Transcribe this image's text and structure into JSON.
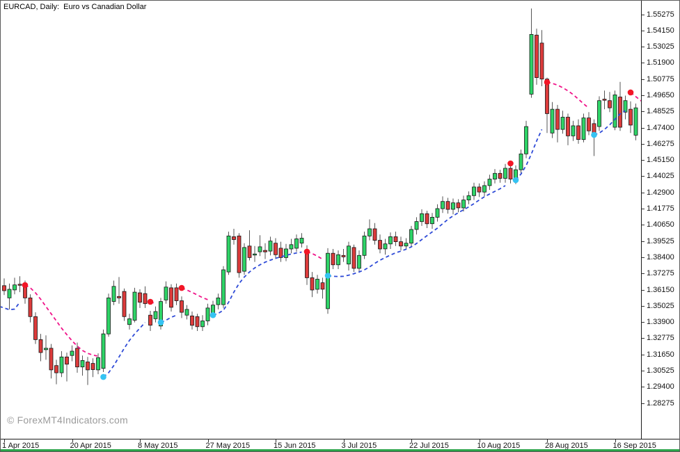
{
  "window": {
    "title": "EURCAD, Daily:  Euro vs Canadian Dollar"
  },
  "watermark": "© ForexMT4Indicators.com",
  "colors": {
    "background": "#ffffff",
    "candle_up": "#2ed467",
    "candle_down": "#dc3b3b",
    "candle_border": "#151515",
    "wick": "#555555",
    "trail_up": "#2f4bd7",
    "trail_down": "#f01389",
    "dot_up": "#35c3f2",
    "dot_down": "#f21626",
    "axis_text": "#111111",
    "bottom_strip": "#2ca44a"
  },
  "chart_data": {
    "type": "candlestick",
    "symbol": "EURCAD",
    "timeframe": "Daily",
    "description": "Euro vs Canadian Dollar",
    "grid": false,
    "legend": false,
    "ylim": [
      1.25814,
      1.56241
    ],
    "price_axis_ticks": [
      "1.55275",
      "1.54150",
      "1.53025",
      "1.51900",
      "1.50775",
      "1.49650",
      "1.48525",
      "1.47400",
      "1.46275",
      "1.45150",
      "1.44025",
      "1.42900",
      "1.41775",
      "1.40650",
      "1.39525",
      "1.38400",
      "1.37275",
      "1.36150",
      "1.35025",
      "1.33900",
      "1.32775",
      "1.31650",
      "1.30525",
      "1.29400",
      "1.28275"
    ],
    "date_axis_ticks": [
      {
        "label": "1 Apr 2015",
        "bar": 0
      },
      {
        "label": "20 Apr 2015",
        "bar": 13
      },
      {
        "label": "8 May 2015",
        "bar": 26
      },
      {
        "label": "27 May 2015",
        "bar": 39
      },
      {
        "label": "15 Jun 2015",
        "bar": 52
      },
      {
        "label": "3 Jul 2015",
        "bar": 65
      },
      {
        "label": "22 Jul 2015",
        "bar": 78
      },
      {
        "label": "10 Aug 2015",
        "bar": 91
      },
      {
        "label": "28 Aug 2015",
        "bar": 104
      },
      {
        "label": "16 Sep 2015",
        "bar": 117
      }
    ],
    "candles": [
      [
        1.3645,
        1.3695,
        1.358,
        1.361
      ],
      [
        1.356,
        1.366,
        1.348,
        1.362
      ],
      [
        1.3615,
        1.37,
        1.3585,
        1.365
      ],
      [
        1.3655,
        1.371,
        1.36,
        1.365
      ],
      [
        1.364,
        1.368,
        1.352,
        1.356
      ],
      [
        1.356,
        1.3585,
        1.339,
        1.343
      ],
      [
        1.343,
        1.346,
        1.324,
        1.327
      ],
      [
        1.327,
        1.331,
        1.312,
        1.318
      ],
      [
        1.32,
        1.33,
        1.313,
        1.321
      ],
      [
        1.321,
        1.324,
        1.3,
        1.306
      ],
      [
        1.309,
        1.313,
        1.296,
        1.304
      ],
      [
        1.304,
        1.319,
        1.301,
        1.315
      ],
      [
        1.315,
        1.318,
        1.298,
        1.31
      ],
      [
        1.316,
        1.323,
        1.312,
        1.319
      ],
      [
        1.321,
        1.325,
        1.304,
        1.308
      ],
      [
        1.308,
        1.316,
        1.302,
        1.3125
      ],
      [
        1.3115,
        1.315,
        1.2955,
        1.306
      ],
      [
        1.3105,
        1.314,
        1.301,
        1.3062
      ],
      [
        1.306,
        1.3175,
        1.303,
        1.3145
      ],
      [
        1.307,
        1.334,
        1.3045,
        1.331
      ],
      [
        1.331,
        1.359,
        1.329,
        1.356
      ],
      [
        1.3535,
        1.368,
        1.351,
        1.364
      ],
      [
        1.357,
        1.3705,
        1.352,
        1.356
      ],
      [
        1.3605,
        1.3625,
        1.34,
        1.343
      ],
      [
        1.3375,
        1.345,
        1.334,
        1.3415
      ],
      [
        1.3405,
        1.363,
        1.339,
        1.36
      ],
      [
        1.3595,
        1.362,
        1.349,
        1.353
      ],
      [
        1.359,
        1.364,
        1.349,
        1.352
      ],
      [
        1.344,
        1.347,
        1.333,
        1.337
      ],
      [
        1.3415,
        1.35,
        1.339,
        1.3465
      ],
      [
        1.3365,
        1.356,
        1.334,
        1.3535
      ],
      [
        1.3545,
        1.3675,
        1.352,
        1.3635
      ],
      [
        1.363,
        1.3655,
        1.3465,
        1.3495
      ],
      [
        1.363,
        1.366,
        1.351,
        1.354
      ],
      [
        1.354,
        1.357,
        1.342,
        1.346
      ],
      [
        1.344,
        1.351,
        1.341,
        1.348
      ],
      [
        1.3435,
        1.3465,
        1.334,
        1.337
      ],
      [
        1.343,
        1.345,
        1.333,
        1.336
      ],
      [
        1.336,
        1.344,
        1.333,
        1.34
      ],
      [
        1.34,
        1.352,
        1.337,
        1.349
      ],
      [
        1.3455,
        1.354,
        1.3435,
        1.351
      ],
      [
        1.3513,
        1.359,
        1.348,
        1.356
      ],
      [
        1.3513,
        1.378,
        1.349,
        1.3755
      ],
      [
        1.374,
        1.402,
        1.372,
        1.399
      ],
      [
        1.3985,
        1.404,
        1.393,
        1.3965
      ],
      [
        1.399,
        1.401,
        1.37,
        1.3735
      ],
      [
        1.3745,
        1.394,
        1.372,
        1.391
      ],
      [
        1.392,
        1.403,
        1.382,
        1.384
      ],
      [
        1.386,
        1.392,
        1.381,
        1.3865
      ],
      [
        1.388,
        1.3995,
        1.385,
        1.3915
      ],
      [
        1.389,
        1.394,
        1.383,
        1.388
      ],
      [
        1.3885,
        1.3985,
        1.3855,
        1.3955
      ],
      [
        1.394,
        1.3975,
        1.383,
        1.386
      ],
      [
        1.3905,
        1.395,
        1.381,
        1.384
      ],
      [
        1.384,
        1.3935,
        1.3815,
        1.39
      ],
      [
        1.39,
        1.397,
        1.387,
        1.393
      ],
      [
        1.3905,
        1.4,
        1.388,
        1.397
      ],
      [
        1.394,
        1.401,
        1.391,
        1.3975
      ],
      [
        1.3875,
        1.3925,
        1.365,
        1.37
      ],
      [
        1.37,
        1.374,
        1.3565,
        1.3615
      ],
      [
        1.362,
        1.372,
        1.359,
        1.369
      ],
      [
        1.3665,
        1.37,
        1.3555,
        1.362
      ],
      [
        1.3485,
        1.3905,
        1.345,
        1.387
      ],
      [
        1.387,
        1.39,
        1.376,
        1.379
      ],
      [
        1.379,
        1.389,
        1.376,
        1.386
      ],
      [
        1.3855,
        1.39,
        1.381,
        1.3845
      ],
      [
        1.3795,
        1.395,
        1.375,
        1.392
      ],
      [
        1.391,
        1.393,
        1.374,
        1.3765
      ],
      [
        1.3765,
        1.389,
        1.374,
        1.3855
      ],
      [
        1.3855,
        1.402,
        1.383,
        1.399
      ],
      [
        1.399,
        1.4105,
        1.396,
        1.404
      ],
      [
        1.404,
        1.408,
        1.393,
        1.396
      ],
      [
        1.396,
        1.4,
        1.387,
        1.39
      ],
      [
        1.39,
        1.397,
        1.386,
        1.3935
      ],
      [
        1.3935,
        1.4015,
        1.39,
        1.3985
      ],
      [
        1.3985,
        1.402,
        1.392,
        1.395
      ],
      [
        1.395,
        1.3985,
        1.389,
        1.392
      ],
      [
        1.392,
        1.3975,
        1.3895,
        1.394
      ],
      [
        1.394,
        1.406,
        1.3915,
        1.4035
      ],
      [
        1.4035,
        1.412,
        1.4,
        1.409
      ],
      [
        1.409,
        1.4175,
        1.406,
        1.4145
      ],
      [
        1.4145,
        1.4165,
        1.4045,
        1.4075
      ],
      [
        1.4075,
        1.415,
        1.404,
        1.412
      ],
      [
        1.412,
        1.421,
        1.409,
        1.418
      ],
      [
        1.418,
        1.4265,
        1.415,
        1.423
      ],
      [
        1.423,
        1.4255,
        1.4145,
        1.4175
      ],
      [
        1.4175,
        1.425,
        1.414,
        1.422
      ],
      [
        1.422,
        1.4245,
        1.4155,
        1.4185
      ],
      [
        1.4185,
        1.427,
        1.416,
        1.424
      ],
      [
        1.424,
        1.43,
        1.421,
        1.427
      ],
      [
        1.427,
        1.436,
        1.424,
        1.433
      ],
      [
        1.433,
        1.4355,
        1.426,
        1.4295
      ],
      [
        1.4295,
        1.437,
        1.4265,
        1.434
      ],
      [
        1.434,
        1.4415,
        1.431,
        1.4385
      ],
      [
        1.4385,
        1.4455,
        1.4355,
        1.4425
      ],
      [
        1.4425,
        1.445,
        1.436,
        1.439
      ],
      [
        1.439,
        1.449,
        1.436,
        1.446
      ],
      [
        1.446,
        1.448,
        1.4355,
        1.4385
      ],
      [
        1.4385,
        1.448,
        1.435,
        1.445
      ],
      [
        1.445,
        1.459,
        1.442,
        1.456
      ],
      [
        1.456,
        1.479,
        1.453,
        1.475
      ],
      [
        1.4975,
        1.557,
        1.495,
        1.539
      ],
      [
        1.5385,
        1.543,
        1.504,
        1.509
      ],
      [
        1.533,
        1.542,
        1.503,
        1.508
      ],
      [
        1.508,
        1.509,
        1.4705,
        1.484
      ],
      [
        1.4705,
        1.492,
        1.467,
        1.487
      ],
      [
        1.487,
        1.49,
        1.464,
        1.473
      ],
      [
        1.473,
        1.486,
        1.47,
        1.4815
      ],
      [
        1.4815,
        1.484,
        1.462,
        1.4685
      ],
      [
        1.4685,
        1.479,
        1.465,
        1.4755
      ],
      [
        1.4755,
        1.48,
        1.463,
        1.466
      ],
      [
        1.466,
        1.484,
        1.464,
        1.481
      ],
      [
        1.481,
        1.485,
        1.469,
        1.472
      ],
      [
        1.477,
        1.48,
        1.4545,
        1.47
      ],
      [
        1.475,
        1.496,
        1.472,
        1.493
      ],
      [
        1.494,
        1.5,
        1.487,
        1.4935
      ],
      [
        1.493,
        1.499,
        1.485,
        1.488
      ],
      [
        1.4745,
        1.5,
        1.4725,
        1.497
      ],
      [
        1.4955,
        1.506,
        1.472,
        1.4745
      ],
      [
        1.485,
        1.4965,
        1.48,
        1.493
      ],
      [
        1.487,
        1.4925,
        1.4705,
        1.476
      ],
      [
        1.469,
        1.491,
        1.4655,
        1.488
      ]
    ],
    "indicator": {
      "name": "trailing-stop-dashed-line",
      "style": "dashed",
      "values": [
        1.349,
        1.3478,
        1.3482,
        1.353,
        1.3649,
        1.363,
        1.3595,
        1.355,
        1.35,
        1.345,
        1.34,
        1.335,
        1.3305,
        1.3262,
        1.3225,
        1.3195,
        1.3175,
        1.3163,
        1.3155,
        1.3011,
        1.304,
        1.309,
        1.315,
        1.321,
        1.3265,
        1.331,
        1.335,
        1.339,
        1.3533,
        1.352,
        1.339,
        1.3405,
        1.3425,
        1.344,
        1.3629,
        1.3615,
        1.3598,
        1.358,
        1.3562,
        1.3548,
        1.344,
        1.3452,
        1.3475,
        1.353,
        1.36,
        1.366,
        1.3705,
        1.374,
        1.3768,
        1.379,
        1.3808,
        1.3822,
        1.3835,
        1.3845,
        1.3855,
        1.3865,
        1.3872,
        1.3878,
        1.3881,
        1.3868,
        1.385,
        1.3828,
        1.3714,
        1.371,
        1.3708,
        1.371,
        1.3718,
        1.3728,
        1.374,
        1.3755,
        1.3775,
        1.38,
        1.3822,
        1.384,
        1.3858,
        1.3873,
        1.3885,
        1.3898,
        1.3915,
        1.3938,
        1.3965,
        1.3992,
        1.4018,
        1.4045,
        1.4075,
        1.4105,
        1.413,
        1.4152,
        1.4172,
        1.4192,
        1.4215,
        1.424,
        1.4262,
        1.4282,
        1.43,
        1.4318,
        1.434,
        1.4494,
        1.4378,
        1.442,
        1.448,
        1.456,
        1.465,
        1.473,
        1.5058,
        1.505,
        1.5038,
        1.502,
        1.4998,
        1.4972,
        1.494,
        1.4908,
        1.4878,
        1.4692,
        1.4705,
        1.473,
        1.4762,
        1.48,
        1.4838,
        1.486,
        1.4987,
        1.4958
      ],
      "segments": [
        {
          "dir": "up",
          "from": 0,
          "to": 3
        },
        {
          "dir": "down",
          "from": 4,
          "to": 18
        },
        {
          "dir": "up",
          "from": 19,
          "to": 27
        },
        {
          "dir": "down",
          "from": 28,
          "to": 29
        },
        {
          "dir": "up",
          "from": 30,
          "to": 33
        },
        {
          "dir": "down",
          "from": 34,
          "to": 39
        },
        {
          "dir": "up",
          "from": 40,
          "to": 57
        },
        {
          "dir": "down",
          "from": 58,
          "to": 61
        },
        {
          "dir": "up",
          "from": 62,
          "to": 96
        },
        {
          "dir": "down",
          "from": 97,
          "to": 97
        },
        {
          "dir": "up",
          "from": 98,
          "to": 103
        },
        {
          "dir": "down",
          "from": 104,
          "to": 112
        },
        {
          "dir": "up",
          "from": 113,
          "to": 119
        },
        {
          "dir": "down",
          "from": 120,
          "to": 121
        }
      ]
    }
  }
}
